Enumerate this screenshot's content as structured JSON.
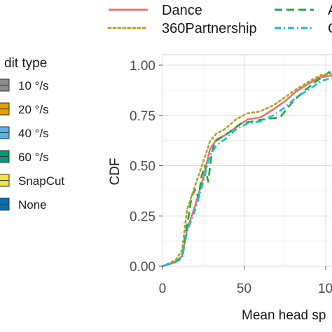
{
  "chart_data": {
    "type": "line",
    "xlabel": "Mean head sp",
    "ylabel": "CDF",
    "xlim": [
      0,
      105
    ],
    "ylim": [
      0,
      1
    ],
    "x_ticks": [
      "0",
      "50",
      "10"
    ],
    "y_ticks": [
      "0.00",
      "0.25",
      "0.50",
      "0.75",
      "1.00"
    ],
    "grid": true,
    "legend_position": "top",
    "series": [
      {
        "name": "Dance",
        "color": "#E8736B",
        "dash": "solid",
        "points": [
          [
            0,
            0.0
          ],
          [
            8,
            0.02
          ],
          [
            12,
            0.05
          ],
          [
            15,
            0.18
          ],
          [
            20,
            0.3
          ],
          [
            25,
            0.44
          ],
          [
            29,
            0.58
          ],
          [
            33,
            0.63
          ],
          [
            38,
            0.65
          ],
          [
            45,
            0.69
          ],
          [
            52,
            0.73
          ],
          [
            60,
            0.74
          ],
          [
            68,
            0.78
          ],
          [
            75,
            0.82
          ],
          [
            82,
            0.87
          ],
          [
            90,
            0.91
          ],
          [
            97,
            0.94
          ],
          [
            105,
            0.95
          ]
        ]
      },
      {
        "name": "A",
        "color": "#1DAA43",
        "dash": "long",
        "points": [
          [
            0,
            0.0
          ],
          [
            8,
            0.02
          ],
          [
            12,
            0.05
          ],
          [
            15,
            0.2
          ],
          [
            18,
            0.35
          ],
          [
            20,
            0.38
          ],
          [
            22,
            0.34
          ],
          [
            24,
            0.45
          ],
          [
            26,
            0.5
          ],
          [
            28,
            0.42
          ],
          [
            30,
            0.55
          ],
          [
            32,
            0.62
          ],
          [
            36,
            0.64
          ],
          [
            40,
            0.66
          ],
          [
            48,
            0.71
          ],
          [
            55,
            0.72
          ],
          [
            62,
            0.73
          ],
          [
            72,
            0.74
          ],
          [
            80,
            0.82
          ],
          [
            88,
            0.88
          ],
          [
            96,
            0.93
          ],
          [
            103,
            0.97
          ],
          [
            105,
            0.97
          ]
        ]
      },
      {
        "name": "360Partnership",
        "color": "#B4A02A",
        "dash": "dotted",
        "points": [
          [
            0,
            0.0
          ],
          [
            8,
            0.03
          ],
          [
            12,
            0.08
          ],
          [
            15,
            0.28
          ],
          [
            20,
            0.4
          ],
          [
            25,
            0.52
          ],
          [
            29,
            0.62
          ],
          [
            33,
            0.66
          ],
          [
            38,
            0.68
          ],
          [
            45,
            0.73
          ],
          [
            52,
            0.76
          ],
          [
            60,
            0.77
          ],
          [
            68,
            0.8
          ],
          [
            75,
            0.84
          ],
          [
            82,
            0.88
          ],
          [
            90,
            0.92
          ],
          [
            97,
            0.95
          ],
          [
            105,
            0.96
          ]
        ]
      },
      {
        "name": "C",
        "color": "#17BFD0",
        "dash": "dashdot",
        "points": [
          [
            0,
            0.0
          ],
          [
            8,
            0.02
          ],
          [
            12,
            0.04
          ],
          [
            15,
            0.17
          ],
          [
            20,
            0.28
          ],
          [
            25,
            0.42
          ],
          [
            29,
            0.55
          ],
          [
            33,
            0.6
          ],
          [
            38,
            0.63
          ],
          [
            45,
            0.68
          ],
          [
            52,
            0.71
          ],
          [
            60,
            0.72
          ],
          [
            68,
            0.75
          ],
          [
            75,
            0.79
          ],
          [
            82,
            0.84
          ],
          [
            90,
            0.88
          ],
          [
            97,
            0.92
          ],
          [
            105,
            0.94
          ]
        ]
      }
    ]
  },
  "legend_fill": {
    "title": "dit type",
    "items": [
      {
        "label": "10 °/s",
        "color": "#8C8C8C"
      },
      {
        "label": "20 °/s",
        "color": "#E69F00"
      },
      {
        "label": "40 °/s",
        "color": "#56B4E9"
      },
      {
        "label": "60 °/s",
        "color": "#009E73"
      },
      {
        "label": "SnapCut",
        "color": "#F0E442"
      },
      {
        "label": "None",
        "color": "#0072B2"
      }
    ]
  }
}
